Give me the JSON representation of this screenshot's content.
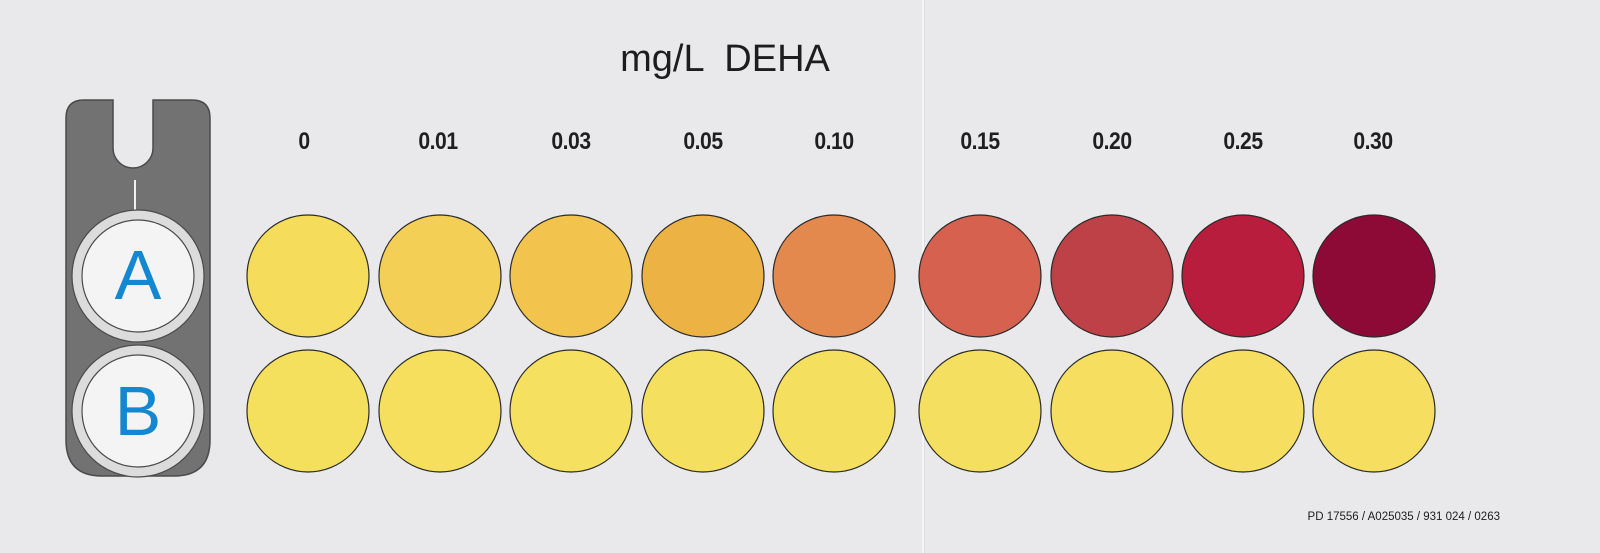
{
  "title": "mg/L  DEHA",
  "holder": {
    "label_a": "A",
    "label_b": "B"
  },
  "scale": [
    {
      "label": "0",
      "a_color": "#f5dc5a",
      "b_color": "#f5e05e"
    },
    {
      "label": "0.01",
      "a_color": "#f4cf56",
      "b_color": "#f5df5c"
    },
    {
      "label": "0.03",
      "a_color": "#f2c44e",
      "b_color": "#f5e05f"
    },
    {
      "label": "0.05",
      "a_color": "#edb244",
      "b_color": "#f5df5e"
    },
    {
      "label": "0.10",
      "a_color": "#e4894d",
      "b_color": "#f5df5f"
    },
    {
      "label": "0.15",
      "a_color": "#d6614f",
      "b_color": "#f5df60"
    },
    {
      "label": "0.20",
      "a_color": "#bd4147",
      "b_color": "#f5de60"
    },
    {
      "label": "0.25",
      "a_color": "#b81d3e",
      "b_color": "#f5de60"
    },
    {
      "label": "0.30",
      "a_color": "#8c0a35",
      "b_color": "#f5de60"
    }
  ],
  "footer": "PD 17556 / A025035 / 931 024 / 0263",
  "colors": {
    "holder_gray": "#727272",
    "label_blue": "#1387cf"
  }
}
